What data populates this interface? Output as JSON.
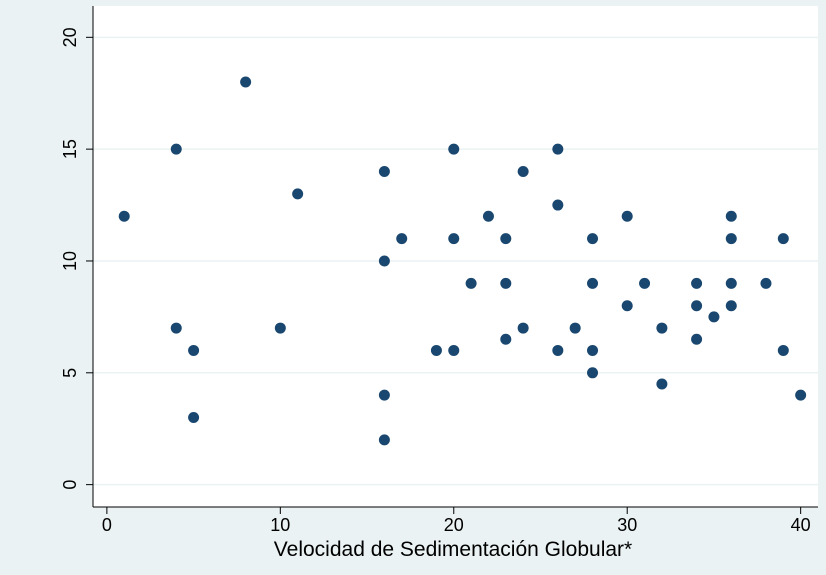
{
  "chart_data": {
    "type": "scatter",
    "x_label": "Velocidad de Sedimentación Globular*",
    "color": "#1a476f",
    "x": [
      1,
      4,
      4,
      5,
      5,
      8,
      10,
      11,
      16,
      16,
      16,
      16,
      17,
      19,
      20,
      20,
      20,
      21,
      22,
      23,
      23,
      23,
      24,
      24,
      26,
      26,
      26,
      27,
      28,
      28,
      28,
      28,
      30,
      30,
      31,
      32,
      32,
      34,
      34,
      34,
      35,
      36,
      36,
      36,
      36,
      38,
      39,
      39,
      40
    ],
    "y": [
      12,
      15,
      7,
      6,
      3,
      18,
      7,
      13,
      14,
      10,
      4,
      2,
      11,
      6,
      15,
      11,
      6,
      9,
      12,
      11,
      9,
      6.5,
      14,
      7,
      15,
      12.5,
      6,
      7,
      11,
      9,
      6,
      5,
      12,
      8,
      9,
      7,
      4.5,
      9,
      8,
      6.5,
      7.5,
      12,
      11,
      9,
      8,
      9,
      11,
      6,
      4
    ],
    "xlim": [
      -0.8,
      41
    ],
    "ylim": [
      -1,
      21.4
    ],
    "xticks": [
      0,
      10,
      20,
      30,
      40
    ],
    "yticks": [
      0,
      5,
      10,
      15,
      20
    ],
    "grid": true
  }
}
